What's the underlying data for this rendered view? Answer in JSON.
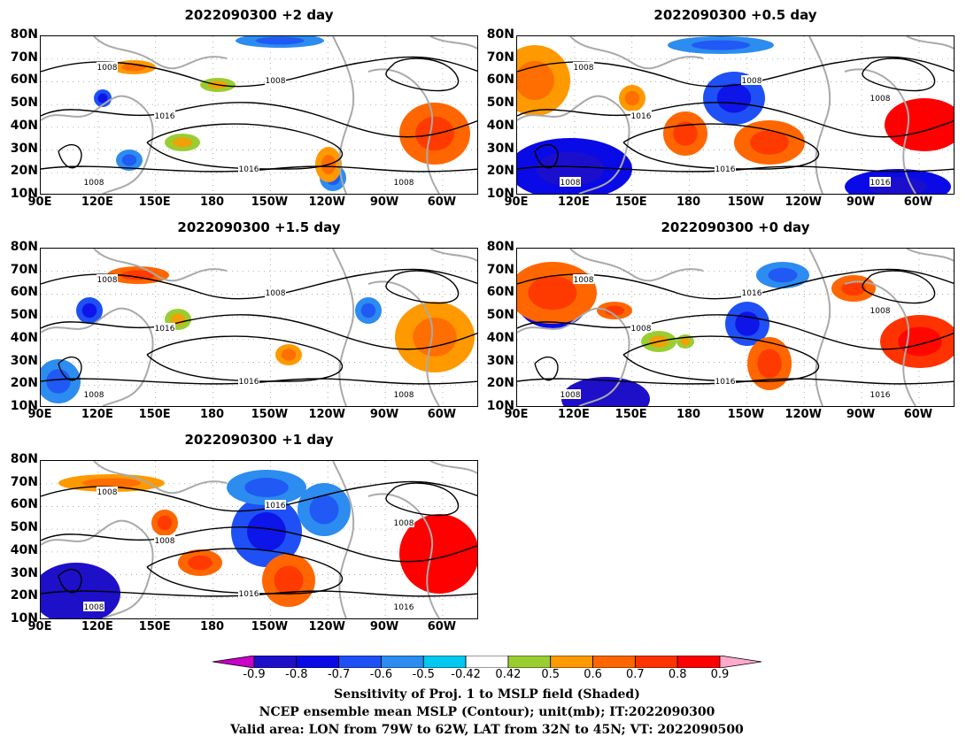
{
  "panels": [
    {
      "title": "2022090300 +2 day",
      "variant": 2,
      "contour_labels": [
        "1008",
        "1008",
        "1016",
        "1016",
        "1008",
        "1008"
      ]
    },
    {
      "title": "2022090300 +0.5 day",
      "variant": 1,
      "contour_labels": [
        "1008",
        "1008",
        "1016",
        "1016",
        "1016",
        "1008",
        "1008"
      ]
    },
    {
      "title": "2022090300 +1.5 day",
      "variant": 3,
      "contour_labels": [
        "1008",
        "1008",
        "1016",
        "1016",
        "1008",
        "1008"
      ]
    },
    {
      "title": "2022090300 +0 day",
      "variant": 0,
      "contour_labels": [
        "1008",
        "1016",
        "1008",
        "1016",
        "1016",
        "1008",
        "1008"
      ]
    },
    {
      "title": "2022090300 +1 day",
      "variant": 4,
      "contour_labels": [
        "1008",
        "1016",
        "1008",
        "1016",
        "1016",
        "1008",
        "1008"
      ]
    }
  ],
  "axes": {
    "y_ticks": [
      "80N",
      "70N",
      "60N",
      "50N",
      "40N",
      "30N",
      "20N",
      "10N"
    ],
    "x_ticks": [
      "90E",
      "120E",
      "150E",
      "180",
      "150W",
      "120W",
      "90W",
      "60W"
    ]
  },
  "colorbar": {
    "labels": [
      "-0.9",
      "-0.8",
      "-0.7",
      "-0.6",
      "-0.5",
      "-0.42",
      "0.42",
      "0.5",
      "0.6",
      "0.7",
      "0.8",
      "0.9"
    ],
    "colors": [
      "#c800c8",
      "#1e0fc8",
      "#0a0ae6",
      "#1e50f5",
      "#2c8cf0",
      "#00c8f0",
      "#ffffff",
      "#9acd32",
      "#ff9900",
      "#ff6600",
      "#ff3300",
      "#ff0000",
      "#ffaacc"
    ]
  },
  "footer": {
    "line1": "Sensitivity of Proj. 1 to MSLP field (Shaded)",
    "line2": "NCEP ensemble mean MSLP (Contour); unit(mb); IT:2022090300",
    "line3": "Valid area: LON from 79W to 62W, LAT from 32N to 45N; VT: 2022090500"
  }
}
